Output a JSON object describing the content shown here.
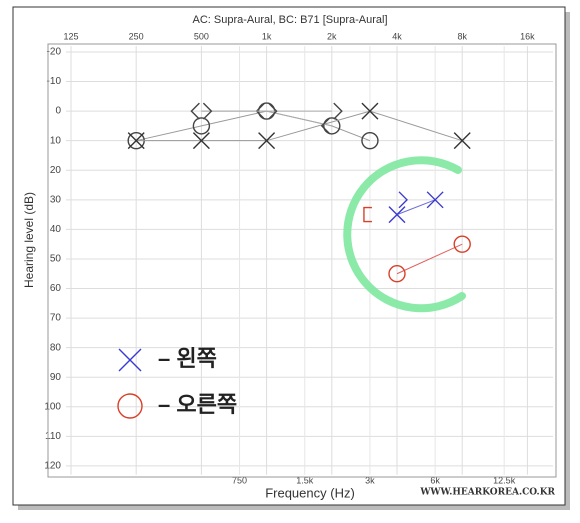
{
  "chart_data": {
    "type": "line",
    "title": "AC: Supra-Aural, BC: B71 [Supra-Aural]",
    "x_label": "Frequency (Hz)",
    "y_label": "Hearing level (dB)",
    "xscale": "log",
    "xlim": [
      100,
      20000
    ],
    "ylim": [
      -23,
      123
    ],
    "y_inverted": true,
    "grid": true,
    "xticks": [
      125,
      250,
      500,
      {
        "value": 1000,
        "label": "1k"
      },
      {
        "value": 2000,
        "label": "2k"
      },
      {
        "value": 4000,
        "label": "4k"
      },
      {
        "value": 8000,
        "label": "8k"
      },
      {
        "value": 16000,
        "label": "16k"
      }
    ],
    "xticks2": [
      750,
      {
        "value": 1500,
        "label": "1.5k"
      },
      {
        "value": 3000,
        "label": "3k"
      },
      {
        "value": 6000,
        "label": "6k"
      },
      {
        "value": 12500,
        "label": "12.5k"
      }
    ],
    "yticks": [
      -20,
      -10,
      0,
      10,
      20,
      30,
      40,
      50,
      60,
      70,
      80,
      90,
      100,
      110,
      120
    ],
    "series": [
      {
        "marker": "o",
        "color": "#444444",
        "line_color": "#999999",
        "x": [
          250,
          500,
          1000,
          2000,
          3000
        ],
        "values": [
          10,
          5,
          0,
          5,
          10
        ]
      },
      {
        "marker": "x",
        "color": "#333333",
        "line_color": "#999999",
        "x": [
          250,
          500,
          1000,
          3000,
          8000
        ],
        "values": [
          10,
          10,
          10,
          0,
          10
        ]
      },
      {
        "marker": "<",
        "color": "#444444",
        "line_color": "#aaaaaa",
        "x": [
          500,
          1000,
          2000
        ],
        "values": [
          0,
          0,
          5
        ]
      },
      {
        "marker": ">",
        "color": "#444444",
        "line_color": "#aaaaaa",
        "x": [
          500,
          1000,
          2000
        ],
        "values": [
          0,
          0,
          0
        ]
      },
      {
        "name": "– 왼쪽",
        "marker": "x",
        "color": "#3a3ad0",
        "line_color": "#6a6ad8",
        "x": [
          4000,
          6000
        ],
        "values": [
          35,
          30
        ]
      },
      {
        "name": "– 오른쪽",
        "marker": "o",
        "color": "#d8402a",
        "line_color": "#e06060",
        "x": [
          4000,
          8000
        ],
        "values": [
          55,
          45
        ]
      },
      {
        "marker": "[",
        "color": "#d8402a",
        "line_color": "#e06060",
        "x": [
          3000
        ],
        "values": [
          35
        ]
      },
      {
        "marker": ">",
        "color": "#3a3ad0",
        "line_color": "#6a6ad8",
        "x": [
          4000
        ],
        "values": [
          30
        ]
      }
    ],
    "watermark": "WWW.HEARKOREA.CO.KR"
  }
}
